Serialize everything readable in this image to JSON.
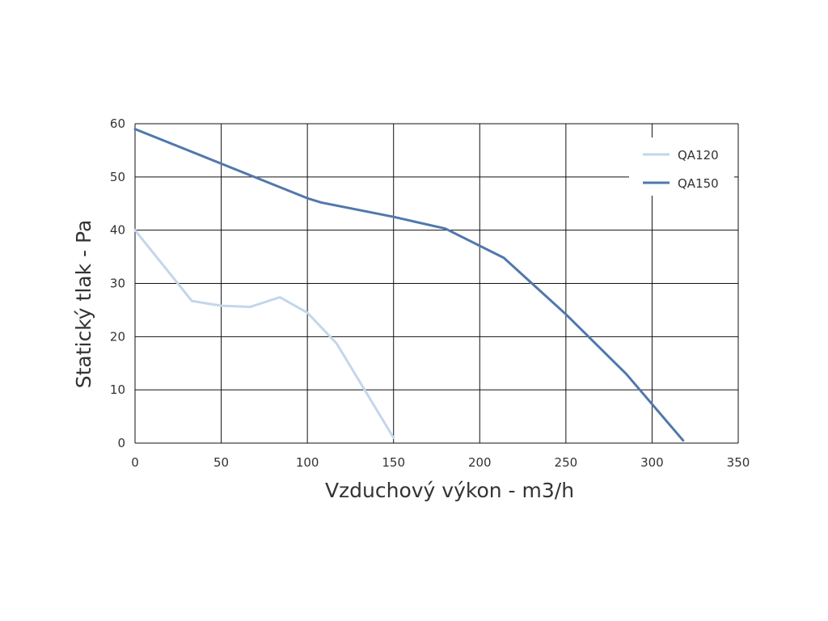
{
  "chart_data": {
    "type": "line",
    "title": "",
    "xlabel": "Vzduchový výkon - m3/h",
    "ylabel": "Statický tlak - Pa",
    "xlim": [
      0,
      350
    ],
    "ylim": [
      0,
      60
    ],
    "xticks": [
      0,
      50,
      100,
      150,
      200,
      250,
      300,
      350
    ],
    "yticks": [
      0,
      10,
      20,
      30,
      40,
      50,
      60
    ],
    "grid": true,
    "legend_position": "top-right",
    "series": [
      {
        "name": "QA120",
        "color": "#c3d6eb",
        "x": [
          0,
          33,
          50,
          67,
          84,
          100,
          117,
          150
        ],
        "y": [
          40,
          26.7,
          25.8,
          25.6,
          27.4,
          24.5,
          18.7,
          1
        ]
      },
      {
        "name": "QA150",
        "color": "#5078ac",
        "x": [
          0,
          50,
          100,
          108,
          150,
          180,
          214,
          250,
          285,
          318
        ],
        "y": [
          59,
          52.5,
          46,
          45.2,
          42.5,
          40.3,
          34.8,
          24.2,
          13,
          0.5
        ]
      }
    ]
  }
}
